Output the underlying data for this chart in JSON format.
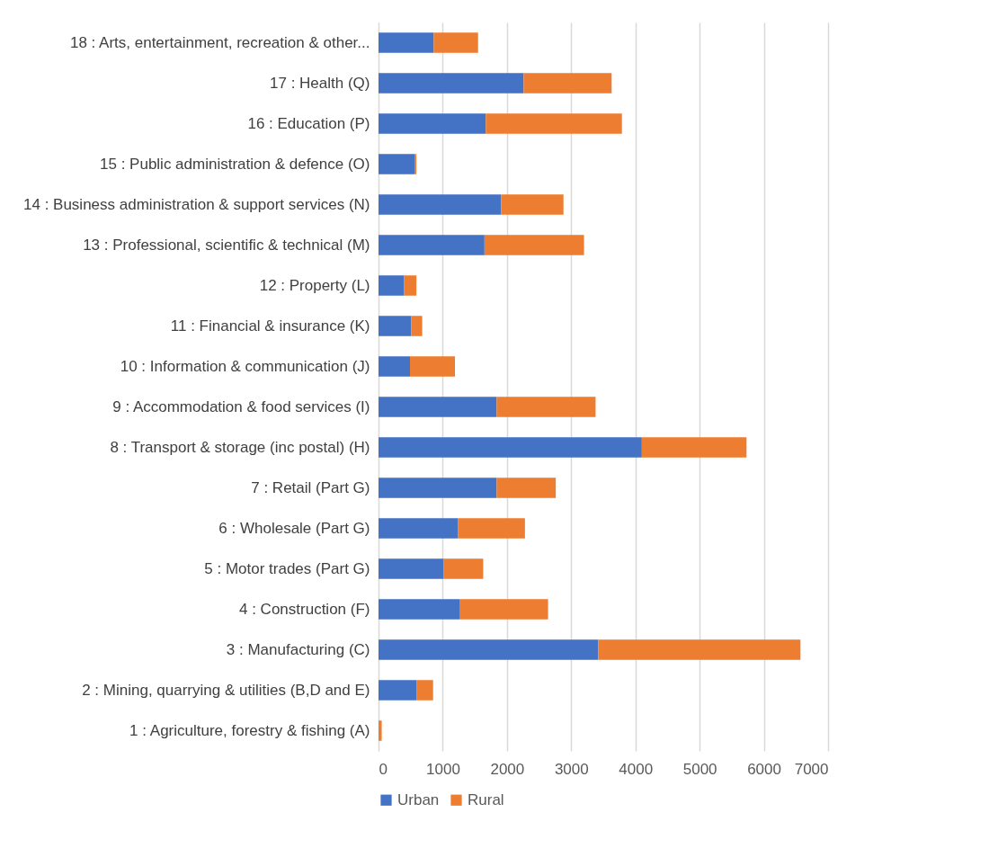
{
  "chart_data": {
    "type": "bar",
    "orientation": "horizontal",
    "stacked": true,
    "categories": [
      "18 : Arts, entertainment, recreation & other...",
      "17 : Health (Q)",
      "16 : Education (P)",
      "15 : Public administration & defence (O)",
      "14 : Business administration & support services (N)",
      "13 : Professional, scientific & technical (M)",
      "12 : Property (L)",
      "11 : Financial & insurance (K)",
      "10 : Information & communication (J)",
      "9 : Accommodation & food services (I)",
      "8 : Transport & storage (inc postal) (H)",
      "7 : Retail (Part G)",
      "6 : Wholesale (Part G)",
      "5 : Motor trades (Part G)",
      "4 : Construction (F)",
      "3 : Manufacturing (C)",
      "2 : Mining, quarrying & utilities (B,D and E)",
      "1 : Agriculture, forestry & fishing (A)"
    ],
    "series": [
      {
        "name": "Urban",
        "color": "#4472c4",
        "values": [
          860,
          2260,
          1670,
          560,
          1910,
          1650,
          400,
          510,
          490,
          1840,
          4100,
          1840,
          1240,
          1010,
          1260,
          3420,
          590,
          0
        ]
      },
      {
        "name": "Rural",
        "color": "#ed7d31",
        "values": [
          690,
          1370,
          2120,
          30,
          970,
          1550,
          190,
          170,
          700,
          1540,
          1630,
          920,
          1040,
          620,
          1380,
          3150,
          260,
          50
        ]
      }
    ],
    "xlim": [
      0,
      7000
    ],
    "xticks": [
      0,
      1000,
      2000,
      3000,
      4000,
      5000,
      6000,
      7000
    ],
    "grid": "x",
    "legend": "bottom"
  }
}
